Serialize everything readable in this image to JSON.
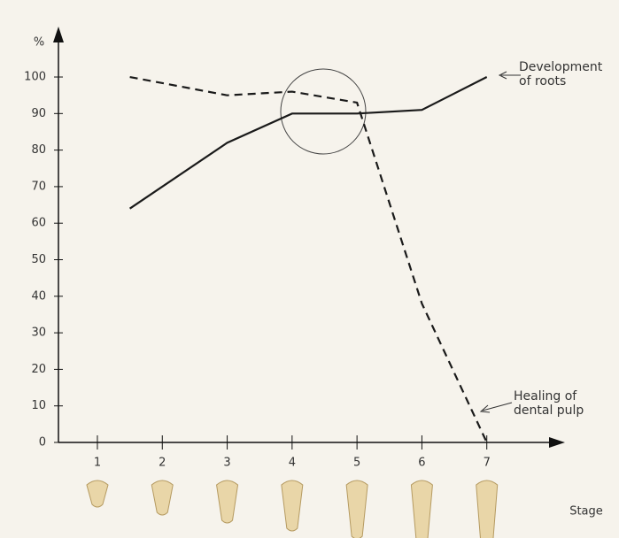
{
  "chart_data": {
    "type": "line",
    "y_label": "%",
    "x_label": "Stage",
    "xlim": [
      0.4,
      8.15
    ],
    "xticks": [
      1,
      2,
      3,
      4,
      5,
      6,
      7
    ],
    "ylim": [
      0,
      111
    ],
    "yticks": [
      0,
      10,
      20,
      30,
      40,
      50,
      60,
      70,
      80,
      90,
      100
    ],
    "series": [
      {
        "name": "Development of roots",
        "color": "#1a1a1a",
        "dash": false,
        "x": [
          1.5,
          3,
          4,
          5,
          6,
          7
        ],
        "values": [
          64,
          82,
          90,
          90,
          91,
          100
        ]
      },
      {
        "name": "Healing of dental pulp",
        "color": "#1a1a1a",
        "dash": true,
        "x": [
          1.5,
          3,
          4,
          5,
          6,
          7
        ],
        "values": [
          100,
          95,
          96,
          93,
          38,
          0
        ]
      }
    ]
  }
}
